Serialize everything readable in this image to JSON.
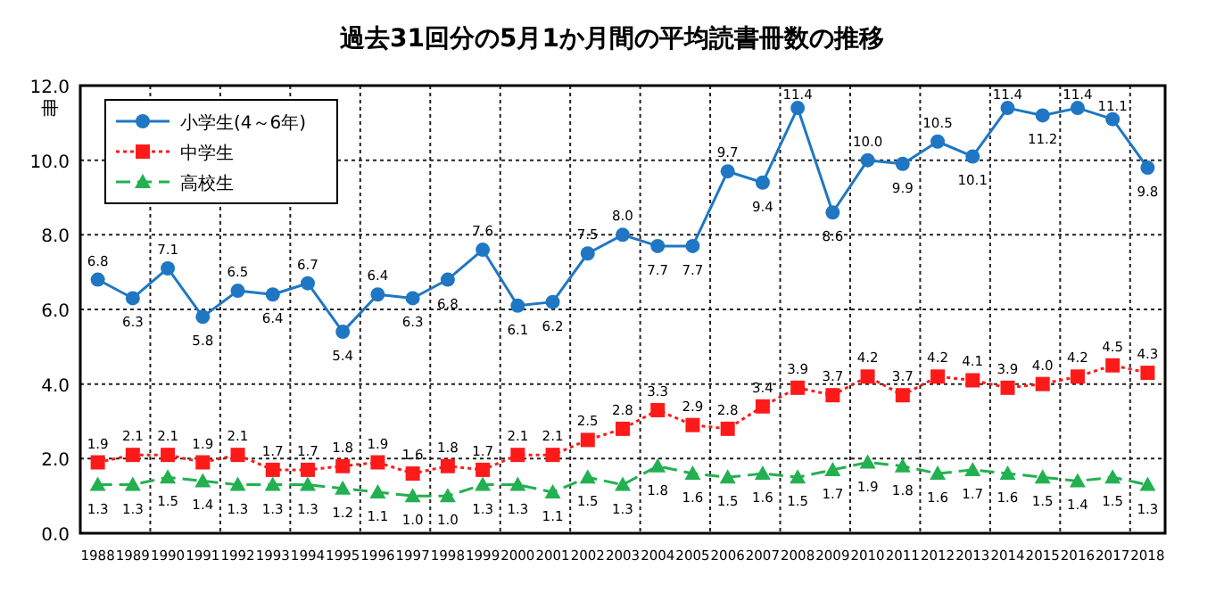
{
  "chart_data": {
    "type": "line",
    "title": "過去31回分の5月1か月間の平均読書冊数の推移",
    "ylabel": "冊",
    "categories": [
      "1988",
      "1989",
      "1990",
      "1991",
      "1992",
      "1993",
      "1994",
      "1995",
      "1996",
      "1997",
      "1998",
      "1999",
      "2000",
      "2001",
      "2002",
      "2003",
      "2004",
      "2005",
      "2006",
      "2007",
      "2008",
      "2009",
      "2010",
      "2011",
      "2012",
      "2013",
      "2014",
      "2015",
      "2016",
      "2017",
      "2018"
    ],
    "series": [
      {
        "name": "小学生(4～6年)",
        "color": "#1f77c4",
        "marker": "circle",
        "line_style": "solid",
        "values": [
          6.8,
          6.3,
          7.1,
          5.8,
          6.5,
          6.4,
          6.7,
          5.4,
          6.4,
          6.3,
          6.8,
          7.6,
          6.1,
          6.2,
          7.5,
          8.0,
          7.7,
          7.7,
          9.7,
          9.4,
          11.4,
          8.6,
          10.0,
          9.9,
          10.5,
          10.1,
          11.4,
          11.2,
          11.4,
          11.1,
          9.8
        ],
        "value_labels": [
          "6.8",
          "6.3",
          "7.1",
          "5.8",
          "6.5",
          "6.4",
          "6.7",
          "5.4",
          "6.4",
          "6.3",
          "6.8",
          "7.6",
          "6.1",
          "6.2",
          "7.5",
          "8.0",
          "7.7",
          "7.7",
          "9.7",
          "9.4",
          "11.4",
          "8.6",
          "10.0",
          "9.9",
          "10.5",
          "10.1",
          "11.4",
          "11.2",
          "11.4",
          "11.1",
          "9.8"
        ]
      },
      {
        "name": "中学生",
        "color": "#ff1a1a",
        "marker": "square",
        "line_style": "dotted",
        "values": [
          1.9,
          2.1,
          2.1,
          1.9,
          2.1,
          1.7,
          1.7,
          1.8,
          1.9,
          1.6,
          1.8,
          1.7,
          2.1,
          2.1,
          2.5,
          2.8,
          3.3,
          2.9,
          2.8,
          3.4,
          3.9,
          3.7,
          4.2,
          3.7,
          4.2,
          4.1,
          3.9,
          4.0,
          4.2,
          4.5,
          4.3
        ],
        "value_labels": [
          "1.9",
          "2.1",
          "2.1",
          "1.9",
          "2.1",
          "1.7",
          "1.7",
          "1.8",
          "1.9",
          "1.6",
          "1.8",
          "1.7",
          "2.1",
          "2.1",
          "2.5",
          "2.8",
          "3.3",
          "2.9",
          "2.8",
          "3.4",
          "3.9",
          "3.7",
          "4.2",
          "3.7",
          "4.2",
          "4.1",
          "3.9",
          "4.0",
          "4.2",
          "4.5",
          "4.3"
        ]
      },
      {
        "name": "高校生",
        "color": "#22b050",
        "marker": "triangle",
        "line_style": "dashed",
        "values": [
          1.3,
          1.3,
          1.5,
          1.4,
          1.3,
          1.3,
          1.3,
          1.2,
          1.1,
          1.0,
          1.0,
          1.3,
          1.3,
          1.1,
          1.5,
          1.3,
          1.8,
          1.6,
          1.5,
          1.6,
          1.5,
          1.7,
          1.9,
          1.8,
          1.6,
          1.7,
          1.6,
          1.5,
          1.4,
          1.5,
          1.3
        ],
        "value_labels": [
          "1.3",
          "1.3",
          "1.5",
          "1.4",
          "1.3",
          "1.3",
          "1.3",
          "1.2",
          "1.1",
          "1.0",
          "1.0",
          "1.3",
          "1.3",
          "1.1",
          "1.5",
          "1.3",
          "1.8",
          "1.6",
          "1.5",
          "1.6",
          "1.5",
          "1.7",
          "1.9",
          "1.8",
          "1.6",
          "1.7",
          "1.6",
          "1.5",
          "1.4",
          "1.5",
          "1.3"
        ]
      }
    ],
    "ylim": [
      0,
      12
    ],
    "yticks": [
      {
        "value": 0,
        "label": "0.0"
      },
      {
        "value": 2,
        "label": "2.0"
      },
      {
        "value": 4,
        "label": "4.0"
      },
      {
        "value": 6,
        "label": "6.0"
      },
      {
        "value": 8,
        "label": "8.0"
      },
      {
        "value": 10,
        "label": "10.0"
      },
      {
        "value": 12,
        "label": "12.0"
      }
    ],
    "grid": true,
    "legend": "top left"
  }
}
